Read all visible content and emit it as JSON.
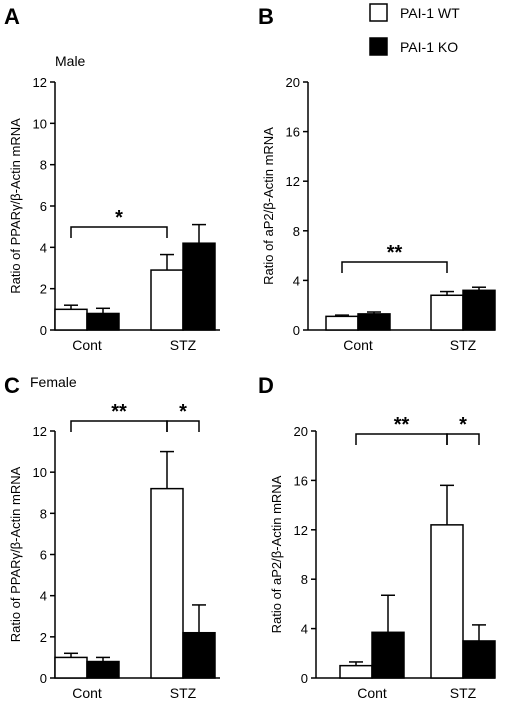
{
  "legend": {
    "wt_label": "PAI-1 WT",
    "ko_label": "PAI-1 KO",
    "colors": {
      "wt": "#ffffff",
      "ko": "#000000"
    }
  },
  "chart_data": [
    {
      "type": "bar",
      "panel": "A",
      "note": "Male",
      "ylabel": "Ratio of PPARγ/β-Actin mRNA",
      "ylim": [
        0,
        12
      ],
      "yticks": [
        0,
        2,
        4,
        6,
        8,
        10,
        12
      ],
      "categories": [
        "Cont",
        "STZ"
      ],
      "series": [
        {
          "name": "PAI-1 WT",
          "values": [
            1.0,
            2.9
          ],
          "errors": [
            0.2,
            0.75
          ]
        },
        {
          "name": "PAI-1 KO",
          "values": [
            0.8,
            4.2
          ],
          "errors": [
            0.25,
            0.9
          ]
        }
      ],
      "significance": [
        {
          "label": "*",
          "from": [
            0,
            0
          ],
          "to": [
            1,
            0
          ]
        }
      ]
    },
    {
      "type": "bar",
      "panel": "B",
      "ylabel": "Ratio of aP2/β-Actin mRNA",
      "ylim": [
        0,
        20
      ],
      "yticks": [
        0,
        4,
        8,
        12,
        16,
        20
      ],
      "categories": [
        "Cont",
        "STZ"
      ],
      "series": [
        {
          "name": "PAI-1 WT",
          "values": [
            1.1,
            2.8
          ],
          "errors": [
            0.1,
            0.3
          ]
        },
        {
          "name": "PAI-1 KO",
          "values": [
            1.3,
            3.2
          ],
          "errors": [
            0.15,
            0.25
          ]
        }
      ],
      "significance": [
        {
          "label": "**",
          "from": [
            0,
            0
          ],
          "to": [
            1,
            0
          ]
        }
      ]
    },
    {
      "type": "bar",
      "panel": "C",
      "note": "Female",
      "ylabel": "Ratio of PPARγ/β-Actin mRNA",
      "ylim": [
        0,
        12
      ],
      "yticks": [
        0,
        2,
        4,
        6,
        8,
        10,
        12
      ],
      "categories": [
        "Cont",
        "STZ"
      ],
      "series": [
        {
          "name": "PAI-1 WT",
          "values": [
            1.0,
            9.2
          ],
          "errors": [
            0.2,
            1.8
          ]
        },
        {
          "name": "PAI-1 KO",
          "values": [
            0.8,
            2.2
          ],
          "errors": [
            0.2,
            1.35
          ]
        }
      ],
      "significance": [
        {
          "label": "**",
          "from": [
            0,
            0
          ],
          "to": [
            1,
            0
          ]
        },
        {
          "label": "*",
          "from": [
            1,
            0
          ],
          "to": [
            1,
            1
          ]
        }
      ]
    },
    {
      "type": "bar",
      "panel": "D",
      "ylabel": "Ratio of aP2/β-Actin mRNA",
      "ylim": [
        0,
        20
      ],
      "yticks": [
        0,
        4,
        8,
        12,
        16,
        20
      ],
      "categories": [
        "Cont",
        "STZ"
      ],
      "series": [
        {
          "name": "PAI-1 WT",
          "values": [
            1.0,
            12.4
          ],
          "errors": [
            0.3,
            3.2
          ]
        },
        {
          "name": "PAI-1 KO",
          "values": [
            3.7,
            3.0
          ],
          "errors": [
            3.0,
            1.3
          ]
        }
      ],
      "significance": [
        {
          "label": "**",
          "from": [
            0,
            0
          ],
          "to": [
            1,
            0
          ]
        },
        {
          "label": "*",
          "from": [
            1,
            0
          ],
          "to": [
            1,
            1
          ]
        }
      ]
    }
  ]
}
